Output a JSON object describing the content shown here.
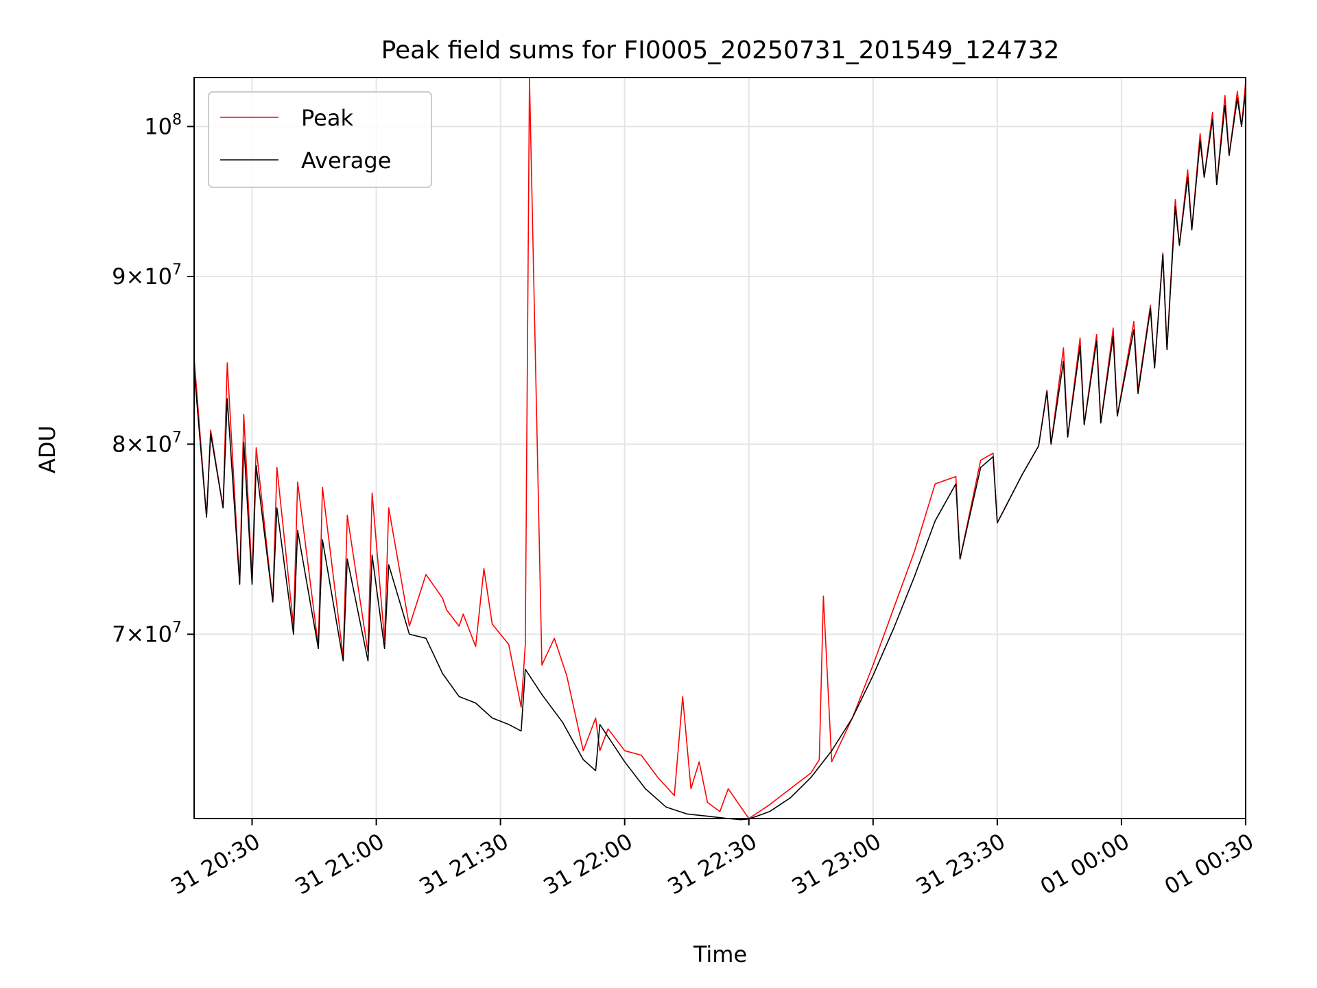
{
  "chart_data": {
    "type": "line",
    "title": "Peak field sums for FI0005_20250731_201549_124732",
    "xlabel": "Time",
    "ylabel": "ADU",
    "yscale": "log",
    "grid": true,
    "legend_position": "upper left",
    "xlim": [
      "2025-07-31 20:16",
      "2025-08-01 00:30"
    ],
    "ylim": [
      61500000,
      103500000
    ],
    "xticks": [
      {
        "value": "2025-07-31 20:30",
        "label": "31 20:30"
      },
      {
        "value": "2025-07-31 21:00",
        "label": "31 21:00"
      },
      {
        "value": "2025-07-31 21:30",
        "label": "31 21:30"
      },
      {
        "value": "2025-07-31 22:00",
        "label": "31 22:00"
      },
      {
        "value": "2025-07-31 22:30",
        "label": "31 22:30"
      },
      {
        "value": "2025-07-31 23:00",
        "label": "31 23:00"
      },
      {
        "value": "2025-07-31 23:30",
        "label": "31 23:30"
      },
      {
        "value": "2025-08-01 00:00",
        "label": "01 00:00"
      },
      {
        "value": "2025-08-01 00:30",
        "label": "01 00:30"
      }
    ],
    "yticks": [
      {
        "value": 70000000,
        "base": "7",
        "exp": "7"
      },
      {
        "value": 80000000,
        "base": "8",
        "exp": "7"
      },
      {
        "value": 90000000,
        "base": "9",
        "exp": "7"
      },
      {
        "value": 100000000,
        "base": "",
        "exp": "8"
      }
    ],
    "series": [
      {
        "name": "Peak",
        "color": "#ff0000",
        "x": [
          "2025-07-31 20:16",
          "2025-07-31 20:19",
          "2025-07-31 20:20",
          "2025-07-31 20:23",
          "2025-07-31 20:24",
          "2025-07-31 20:27",
          "2025-07-31 20:28",
          "2025-07-31 20:30",
          "2025-07-31 20:31",
          "2025-07-31 20:35",
          "2025-07-31 20:36",
          "2025-07-31 20:40",
          "2025-07-31 20:41",
          "2025-07-31 20:46",
          "2025-07-31 20:47",
          "2025-07-31 20:52",
          "2025-07-31 20:53",
          "2025-07-31 20:58",
          "2025-07-31 20:59",
          "2025-07-31 21:02",
          "2025-07-31 21:03",
          "2025-07-31 21:08",
          "2025-07-31 21:12",
          "2025-07-31 21:16",
          "2025-07-31 21:17",
          "2025-07-31 21:20",
          "2025-07-31 21:21",
          "2025-07-31 21:24",
          "2025-07-31 21:26",
          "2025-07-31 21:28",
          "2025-07-31 21:32",
          "2025-07-31 21:35",
          "2025-07-31 21:36",
          "2025-07-31 21:37",
          "2025-07-31 21:40",
          "2025-07-31 21:43",
          "2025-07-31 21:46",
          "2025-07-31 21:50",
          "2025-07-31 21:53",
          "2025-07-31 21:54",
          "2025-07-31 21:56",
          "2025-07-31 22:00",
          "2025-07-31 22:04",
          "2025-07-31 22:08",
          "2025-07-31 22:12",
          "2025-07-31 22:14",
          "2025-07-31 22:16",
          "2025-07-31 22:18",
          "2025-07-31 22:20",
          "2025-07-31 22:23",
          "2025-07-31 22:25",
          "2025-07-31 22:30",
          "2025-07-31 22:35",
          "2025-07-31 22:40",
          "2025-07-31 22:45",
          "2025-07-31 22:47",
          "2025-07-31 22:48",
          "2025-07-31 22:50",
          "2025-07-31 22:55",
          "2025-07-31 23:00",
          "2025-07-31 23:05",
          "2025-07-31 23:10",
          "2025-07-31 23:15",
          "2025-07-31 23:20",
          "2025-07-31 23:21",
          "2025-07-31 23:26",
          "2025-07-31 23:29",
          "2025-07-31 23:30",
          "2025-07-31 23:36",
          "2025-07-31 23:40",
          "2025-07-31 23:42",
          "2025-07-31 23:43",
          "2025-07-31 23:46",
          "2025-07-31 23:47",
          "2025-07-31 23:50",
          "2025-07-31 23:51",
          "2025-07-31 23:54",
          "2025-07-31 23:55",
          "2025-07-31 23:58",
          "2025-07-31 23:59",
          "2025-08-01 00:03",
          "2025-08-01 00:04",
          "2025-08-01 00:07",
          "2025-08-01 00:08",
          "2025-08-01 00:10",
          "2025-08-01 00:11",
          "2025-08-01 00:13",
          "2025-08-01 00:14",
          "2025-08-01 00:16",
          "2025-08-01 00:17",
          "2025-08-01 00:19",
          "2025-08-01 00:20",
          "2025-08-01 00:22",
          "2025-08-01 00:23",
          "2025-08-01 00:25",
          "2025-08-01 00:26",
          "2025-08-01 00:28",
          "2025-08-01 00:29",
          "2025-08-01 00:30"
        ],
        "values": [
          85000000,
          76000000,
          80800000,
          76500000,
          84700000,
          72500000,
          81700000,
          72800000,
          79800000,
          71600000,
          78700000,
          70400000,
          77900000,
          69400000,
          77600000,
          68900000,
          76100000,
          69100000,
          77300000,
          69700000,
          76500000,
          70400000,
          73000000,
          71800000,
          71200000,
          70400000,
          71000000,
          69400000,
          73300000,
          70500000,
          69500000,
          66500000,
          69500000,
          103500000,
          68500000,
          69800000,
          68000000,
          64500000,
          66000000,
          64500000,
          65500000,
          64500000,
          64300000,
          63300000,
          62500000,
          67000000,
          62800000,
          64000000,
          62200000,
          61800000,
          62800000,
          61500000,
          62100000,
          62800000,
          63500000,
          64100000,
          71900000,
          64000000,
          66000000,
          68500000,
          71300000,
          74200000,
          77800000,
          78200000,
          73800000,
          79100000,
          79500000,
          75700000,
          78300000,
          79900000,
          83100000,
          80000000,
          85600000,
          80400000,
          86200000,
          81100000,
          86400000,
          81200000,
          86800000,
          81600000,
          87200000,
          83100000,
          88200000,
          84400000,
          91500000,
          85500000,
          95000000,
          92000000,
          97000000,
          93000000,
          99500000,
          96500000,
          101000000,
          96000000,
          102200000,
          98000000,
          102500000,
          100000000,
          103200000
        ]
      },
      {
        "name": "Average",
        "color": "#000000",
        "x": [
          "2025-07-31 20:16",
          "2025-07-31 20:19",
          "2025-07-31 20:20",
          "2025-07-31 20:23",
          "2025-07-31 20:24",
          "2025-07-31 20:27",
          "2025-07-31 20:28",
          "2025-07-31 20:30",
          "2025-07-31 20:31",
          "2025-07-31 20:35",
          "2025-07-31 20:36",
          "2025-07-31 20:40",
          "2025-07-31 20:41",
          "2025-07-31 20:46",
          "2025-07-31 20:47",
          "2025-07-31 20:52",
          "2025-07-31 20:53",
          "2025-07-31 20:58",
          "2025-07-31 20:59",
          "2025-07-31 21:02",
          "2025-07-31 21:03",
          "2025-07-31 21:08",
          "2025-07-31 21:12",
          "2025-07-31 21:16",
          "2025-07-31 21:20",
          "2025-07-31 21:24",
          "2025-07-31 21:28",
          "2025-07-31 21:32",
          "2025-07-31 21:35",
          "2025-07-31 21:36",
          "2025-07-31 21:40",
          "2025-07-31 21:45",
          "2025-07-31 21:50",
          "2025-07-31 21:53",
          "2025-07-31 21:54",
          "2025-07-31 22:00",
          "2025-07-31 22:05",
          "2025-07-31 22:10",
          "2025-07-31 22:15",
          "2025-07-31 22:20",
          "2025-07-31 22:25",
          "2025-07-31 22:28",
          "2025-07-31 22:30",
          "2025-07-31 22:35",
          "2025-07-31 22:40",
          "2025-07-31 22:45",
          "2025-07-31 22:50",
          "2025-07-31 22:55",
          "2025-07-31 23:00",
          "2025-07-31 23:05",
          "2025-07-31 23:10",
          "2025-07-31 23:15",
          "2025-07-31 23:20",
          "2025-07-31 23:21",
          "2025-07-31 23:26",
          "2025-07-31 23:29",
          "2025-07-31 23:30",
          "2025-07-31 23:36",
          "2025-07-31 23:40",
          "2025-07-31 23:42",
          "2025-07-31 23:43",
          "2025-07-31 23:46",
          "2025-07-31 23:47",
          "2025-07-31 23:50",
          "2025-07-31 23:51",
          "2025-07-31 23:54",
          "2025-07-31 23:55",
          "2025-07-31 23:58",
          "2025-07-31 23:59",
          "2025-08-01 00:03",
          "2025-08-01 00:04",
          "2025-08-01 00:07",
          "2025-08-01 00:08",
          "2025-08-01 00:10",
          "2025-08-01 00:11",
          "2025-08-01 00:13",
          "2025-08-01 00:14",
          "2025-08-01 00:16",
          "2025-08-01 00:17",
          "2025-08-01 00:19",
          "2025-08-01 00:20",
          "2025-08-01 00:22",
          "2025-08-01 00:23",
          "2025-08-01 00:25",
          "2025-08-01 00:26",
          "2025-08-01 00:28",
          "2025-08-01 00:29",
          "2025-08-01 00:30"
        ],
        "values": [
          84300000,
          76000000,
          80600000,
          76500000,
          82600000,
          72500000,
          80100000,
          72500000,
          78800000,
          71600000,
          76500000,
          70000000,
          75300000,
          69300000,
          74800000,
          68700000,
          73800000,
          68700000,
          74000000,
          69300000,
          73500000,
          70000000,
          69800000,
          68100000,
          67000000,
          66700000,
          66000000,
          65700000,
          65400000,
          68300000,
          67100000,
          65800000,
          64100000,
          63600000,
          65700000,
          64000000,
          62800000,
          62000000,
          61700000,
          61600000,
          61500000,
          61450000,
          61480000,
          61800000,
          62400000,
          63300000,
          64500000,
          66000000,
          68000000,
          70300000,
          72900000,
          75800000,
          77800000,
          73800000,
          78700000,
          79300000,
          75700000,
          78300000,
          79900000,
          83000000,
          80000000,
          84800000,
          80400000,
          85700000,
          81100000,
          86000000,
          81200000,
          86300000,
          81600000,
          86700000,
          82900000,
          88000000,
          84400000,
          91400000,
          85500000,
          94500000,
          92000000,
          96500000,
          93000000,
          99000000,
          96500000,
          100500000,
          96000000,
          101500000,
          98000000,
          102000000,
          100000000,
          102500000
        ]
      }
    ]
  }
}
